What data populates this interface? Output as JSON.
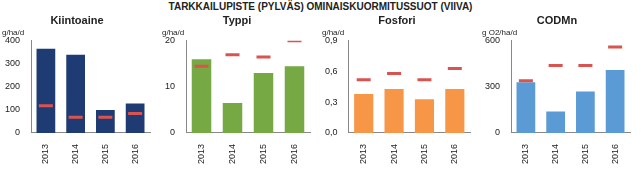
{
  "title": "TARKKAILUPISTE (PYLVÄS) OMINAISKUORMITUSSUOT (VIIVA)",
  "chart_data": [
    {
      "type": "bar",
      "title": "Kiintoaine",
      "ylabel": "g/ha/d",
      "categories": [
        "2013",
        "2014",
        "2015",
        "2016"
      ],
      "series": [
        {
          "type": "bar",
          "color": "#1f3b73",
          "values": [
            365,
            340,
            100,
            128
          ]
        },
        {
          "type": "line",
          "marker": "dash",
          "line_style": "none",
          "color": "#d9534f",
          "values": [
            118,
            68,
            68,
            85
          ]
        }
      ],
      "ylim": [
        0,
        400
      ],
      "yticks": [
        0,
        100,
        200,
        300,
        400
      ],
      "grid": false
    },
    {
      "type": "bar",
      "title": "Typpi",
      "ylabel": "g/ha/d",
      "categories": [
        "2013",
        "2014",
        "2015",
        "2016"
      ],
      "series": [
        {
          "type": "bar",
          "color": "#76a843",
          "values": [
            16,
            6.5,
            13,
            14.5
          ]
        },
        {
          "type": "line",
          "marker": "dash",
          "line_style": "none",
          "color": "#d9534f",
          "values": [
            14.5,
            17,
            16.5,
            20
          ]
        }
      ],
      "ylim": [
        0,
        20
      ],
      "yticks": [
        0,
        10,
        20
      ],
      "grid": false
    },
    {
      "type": "bar",
      "title": "Fosfori",
      "ylabel": "g/ha/d",
      "categories": [
        "2013",
        "2014",
        "2015",
        "2016"
      ],
      "series": [
        {
          "type": "bar",
          "color": "#f79646",
          "values": [
            0.38,
            0.43,
            0.33,
            0.43
          ]
        },
        {
          "type": "line",
          "marker": "dash",
          "line_style": "none",
          "color": "#d9534f",
          "values": [
            0.52,
            0.58,
            0.52,
            0.63
          ]
        }
      ],
      "ylim": [
        0,
        0.9
      ],
      "yticks": [
        {
          "value": 0,
          "label": "0,0"
        },
        {
          "value": 0.3,
          "label": "0,3"
        },
        {
          "value": 0.6,
          "label": "0,6"
        },
        {
          "value": 0.9,
          "label": "0,9"
        }
      ],
      "grid": false
    },
    {
      "type": "bar",
      "title": "CODMn",
      "ylabel": "g O2/ha/d",
      "categories": [
        "2013",
        "2014",
        "2015",
        "2016"
      ],
      "series": [
        {
          "type": "bar",
          "color": "#5b9bd5",
          "values": [
            330,
            140,
            270,
            410
          ]
        },
        {
          "type": "line",
          "marker": "dash",
          "line_style": "none",
          "color": "#d9534f",
          "values": [
            340,
            440,
            440,
            560
          ]
        }
      ],
      "ylim": [
        0,
        600
      ],
      "yticks": [
        0,
        300,
        600
      ],
      "grid": false
    }
  ]
}
